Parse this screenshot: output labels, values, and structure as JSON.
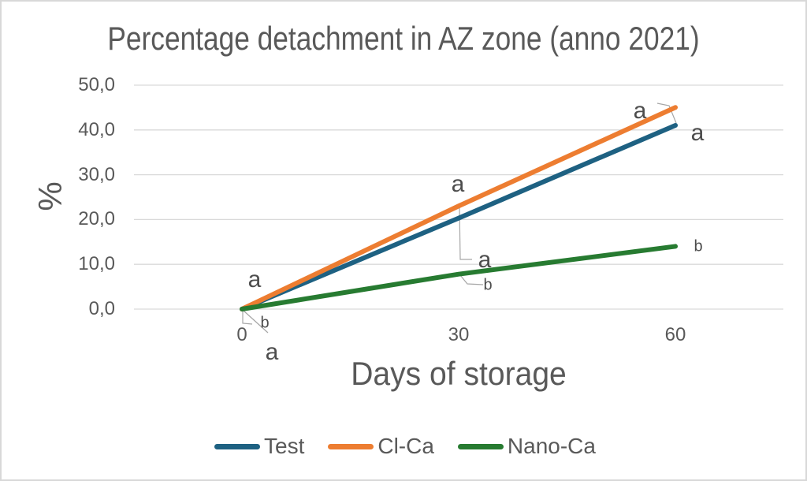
{
  "chart_data": {
    "type": "line",
    "title": "Percentage detachment in AZ zone (anno 2021)",
    "xlabel": "Days of storage",
    "ylabel": "%",
    "x": [
      0,
      30,
      60
    ],
    "x_tick_labels": [
      "0",
      "30",
      "60"
    ],
    "y_tick_labels": [
      "50,0",
      "40,0",
      "30,0",
      "20,0",
      "10,0",
      "0,0"
    ],
    "ylim": [
      0,
      50
    ],
    "grid": true,
    "legend_position": "bottom",
    "series": [
      {
        "name": "Test",
        "color": "#1E6182",
        "values": [
          0.0,
          20.3,
          41.0
        ],
        "significance_letter": "a"
      },
      {
        "name": "Cl-Ca",
        "color": "#ED7D31",
        "values": [
          0.0,
          23.0,
          45.0
        ],
        "significance_letter": "a"
      },
      {
        "name": "Nano-Ca",
        "color": "#277B31",
        "values": [
          0.0,
          7.8,
          14.0
        ],
        "significance_letter": "b"
      }
    ],
    "point_labels": [
      {
        "id": "d0-a-above",
        "text": "a"
      },
      {
        "id": "d0-b",
        "text": "b"
      },
      {
        "id": "d0-a-below",
        "text": "a"
      },
      {
        "id": "d30-a-above",
        "text": "a"
      },
      {
        "id": "d30-a-mid",
        "text": "a"
      },
      {
        "id": "d30-b",
        "text": "b"
      },
      {
        "id": "d60-a-left",
        "text": "a"
      },
      {
        "id": "d60-a-right",
        "text": "a"
      },
      {
        "id": "d60-b",
        "text": "b"
      }
    ],
    "colors": {
      "grid": "#D9D9D9",
      "leader": "#A6A6A6",
      "text": "#595959"
    }
  }
}
